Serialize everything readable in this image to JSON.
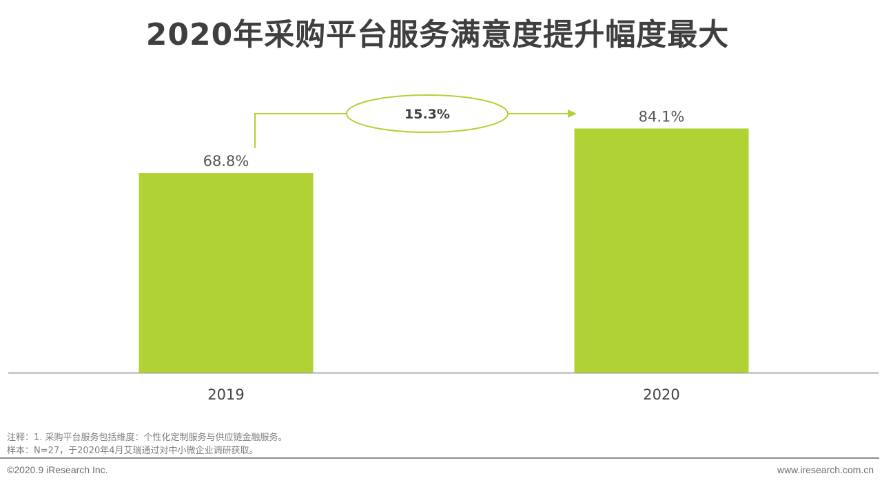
{
  "title": "2020年采购平台服务满意度提升幅度最大",
  "chart_data": {
    "type": "bar",
    "categories": [
      "2019",
      "2020"
    ],
    "values": [
      68.8,
      84.1
    ],
    "value_labels": [
      "68.8%",
      "84.1%"
    ],
    "unit": "%",
    "bar_color": "#b0d235",
    "annotation": {
      "text": "15.3%",
      "from": "2019",
      "to": "2020"
    },
    "grid": false,
    "legend": "none"
  },
  "notes": [
    "注释：1. 采购平台服务包括维度：个性化定制服务与供应链金融服务。",
    "样本：N=27，于2020年4月艾瑞通过对中小微企业调研获取。"
  ],
  "footer": {
    "copyright": "©2020.9 iResearch Inc.",
    "website": "www.iresearch.com.cn"
  }
}
